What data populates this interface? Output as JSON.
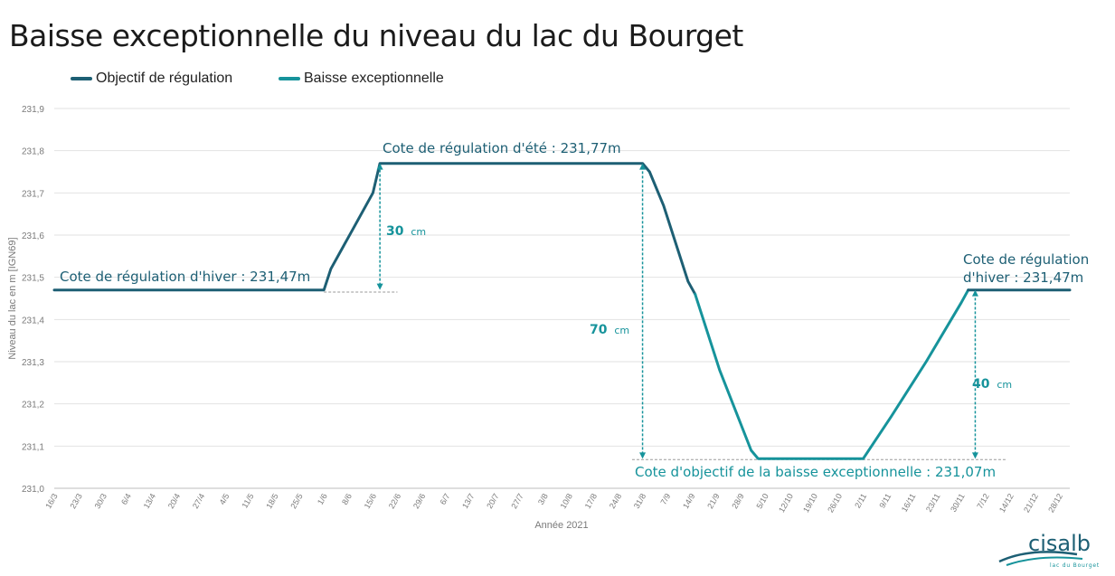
{
  "title": "Baisse exceptionnelle du niveau du lac du Bourget",
  "colors": {
    "regulation": "#1d5f74",
    "baisse": "#16939b",
    "grid": "#e2e2e2",
    "axis_text": "#7a7a7a"
  },
  "logo": {
    "name": "cisalb",
    "subtitle": "lac du Bourget"
  },
  "chart_data": {
    "type": "line",
    "xlabel": "Année 2021",
    "ylabel": "Niveau du lac en m [IGN69]",
    "ylim": [
      231.0,
      231.9
    ],
    "y_ticks": [
      "231,0",
      "231,1",
      "231,2",
      "231,3",
      "231,4",
      "231,5",
      "231,6",
      "231,7",
      "231,8",
      "231,9"
    ],
    "x_ticks": [
      "16/3",
      "23/3",
      "30/3",
      "6/4",
      "13/4",
      "20/4",
      "27/4",
      "4/5",
      "11/5",
      "18/5",
      "25/5",
      "1/6",
      "8/6",
      "15/6",
      "22/6",
      "29/6",
      "6/7",
      "13/7",
      "20/7",
      "27/7",
      "3/8",
      "10/8",
      "17/8",
      "24/8",
      "31/8",
      "7/9",
      "14/9",
      "21/9",
      "28/9",
      "5/10",
      "12/10",
      "19/10",
      "26/10",
      "2/11",
      "9/11",
      "16/11",
      "23/11",
      "30/11",
      "7/12",
      "14/12",
      "21/12",
      "28/12"
    ],
    "legend": [
      "Objectif de régulation",
      "Baisse exceptionnelle"
    ],
    "series": [
      {
        "name": "Objectif de régulation",
        "color": "#1d5f74",
        "points": [
          [
            "2021-03-16",
            231.47
          ],
          [
            "2021-06-01",
            231.47
          ],
          [
            "2021-06-03",
            231.52
          ],
          [
            "2021-06-09",
            231.61
          ],
          [
            "2021-06-15",
            231.7
          ],
          [
            "2021-06-17",
            231.77
          ],
          [
            "2021-08-31",
            231.77
          ],
          [
            "2021-09-02",
            231.75
          ],
          [
            "2021-09-06",
            231.67
          ],
          [
            "2021-09-13",
            231.49
          ],
          [
            "2021-09-15",
            231.46
          ]
        ]
      },
      {
        "name": "Baisse exceptionnelle",
        "color": "#16939b",
        "points": [
          [
            "2021-09-15",
            231.46
          ],
          [
            "2021-09-22",
            231.28
          ],
          [
            "2021-10-01",
            231.09
          ],
          [
            "2021-10-03",
            231.07
          ],
          [
            "2021-11-02",
            231.07
          ],
          [
            "2021-11-10",
            231.17
          ],
          [
            "2021-11-20",
            231.3
          ],
          [
            "2021-11-30",
            231.44
          ],
          [
            "2021-12-02",
            231.47
          ]
        ]
      },
      {
        "name": "Objectif de régulation",
        "color": "#1d5f74",
        "points": [
          [
            "2021-12-02",
            231.47
          ],
          [
            "2021-12-31",
            231.47
          ]
        ]
      }
    ],
    "annotations": {
      "hiver_left": "Cote de régulation d'hiver : 231,47m",
      "ete": "Cote de régulation d'été : 231,77m",
      "hiver_right_1": "Cote de régulation",
      "hiver_right_2": "d'hiver : 231,47m",
      "objectif": "Cote d'objectif de la baisse exceptionnelle : 231,07m",
      "d30": "30",
      "d70": "70",
      "d40": "40",
      "unit": "cm"
    },
    "measures": [
      {
        "date": "2021-06-17",
        "from": 231.47,
        "to": 231.77
      },
      {
        "date": "2021-08-31",
        "from": 231.07,
        "to": 231.77
      },
      {
        "date": "2021-12-04",
        "from": 231.07,
        "to": 231.47
      }
    ],
    "dashed_guides": [
      {
        "y": 231.465,
        "from": "2021-06-01",
        "to": "2021-06-22"
      },
      {
        "y": 231.068,
        "from": "2021-08-28",
        "to": "2021-12-13"
      }
    ],
    "grid": true,
    "legend_position": "top-left"
  }
}
